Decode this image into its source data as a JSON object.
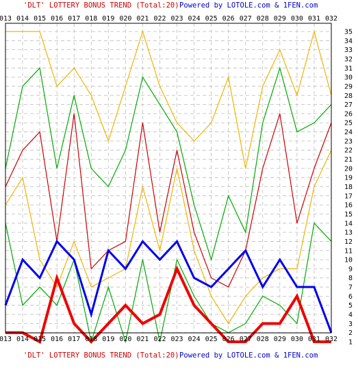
{
  "header": {
    "title": "'DLT' LOTTERY BONUS TREND (Total:20)",
    "credit": "Powered by LOTOLE.com & 1FEN.com"
  },
  "footer": {
    "title": "'DLT' LOTTERY BONUS TREND (Total:20)",
    "credit": "Powered by LOTOLE.com & 1FEN.com"
  },
  "colors": {
    "title": "#cc0000",
    "credit": "#0000cc",
    "grid": "#bbbbbb",
    "frame": "#000000"
  },
  "chart_data": {
    "type": "line",
    "title": "'DLT' LOTTERY BONUS TREND (Total:20)",
    "x": [
      "013",
      "014",
      "015",
      "016",
      "017",
      "018",
      "019",
      "020",
      "021",
      "022",
      "023",
      "024",
      "025",
      "026",
      "027",
      "028",
      "029",
      "030",
      "031",
      "032"
    ],
    "ylim": [
      1,
      35
    ],
    "yticks": [
      1,
      2,
      3,
      4,
      5,
      6,
      7,
      8,
      9,
      10,
      11,
      12,
      13,
      14,
      15,
      16,
      17,
      18,
      19,
      20,
      21,
      22,
      23,
      24,
      25,
      26,
      27,
      28,
      29,
      30,
      31,
      32,
      33,
      34,
      35
    ],
    "grid": true,
    "series": [
      {
        "color": "#f0b400",
        "width": 1.2,
        "values": [
          35,
          35,
          35,
          29,
          31,
          28,
          23,
          29,
          35,
          29,
          25,
          23,
          25,
          30,
          20,
          29,
          33,
          28,
          35,
          28
        ]
      },
      {
        "color": "#00aa00",
        "width": 1.2,
        "values": [
          20,
          29,
          31,
          20,
          28,
          20,
          18,
          22,
          30,
          27,
          24,
          16,
          10,
          17,
          13,
          25,
          31,
          24,
          25,
          27
        ]
      },
      {
        "color": "#cc0000",
        "width": 1.2,
        "values": [
          18,
          22,
          24,
          12,
          26,
          9,
          11,
          12,
          25,
          13,
          22,
          13,
          8,
          7,
          11,
          20,
          26,
          14,
          20,
          25
        ]
      },
      {
        "color": "#f0b400",
        "width": 1.2,
        "values": [
          16,
          19,
          10,
          7,
          12,
          7,
          8,
          9,
          18,
          11,
          20,
          11,
          6,
          3,
          6,
          8,
          9,
          9,
          18,
          22
        ]
      },
      {
        "color": "#00aa00",
        "width": 1.2,
        "values": [
          14,
          5,
          7,
          5,
          10,
          1,
          7,
          1,
          10,
          1,
          10,
          6,
          3,
          2,
          3,
          6,
          5,
          3,
          14,
          12
        ]
      },
      {
        "color": "#0000ee",
        "width": 3,
        "values": [
          5,
          10,
          8,
          12,
          10,
          4,
          11,
          9,
          12,
          10,
          12,
          8,
          7,
          9,
          11,
          7,
          10,
          7,
          7,
          2
        ]
      },
      {
        "color": "#ee0000",
        "width": 4,
        "values": [
          2,
          2,
          1,
          8,
          3,
          1,
          3,
          5,
          3,
          4,
          9,
          5,
          3,
          1,
          1,
          3,
          3,
          6,
          1,
          1
        ]
      }
    ]
  }
}
